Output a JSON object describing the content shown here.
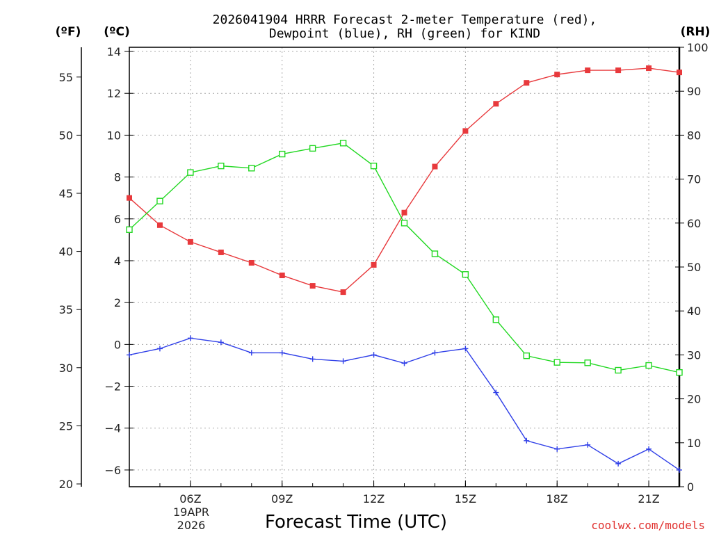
{
  "chart_data": {
    "type": "line",
    "title_line1": "2026041904 HRRR Forecast 2-meter Temperature (red),",
    "title_line2": "Dewpoint (blue), RH (green) for KIND",
    "xlabel": "Forecast Time (UTC)",
    "unit_f": "(ºF)",
    "unit_c": "(ºC)",
    "unit_rh": "(RH)",
    "date_label_day": "19APR",
    "date_label_year": "2026",
    "credit": "coolwx.com/models",
    "x_hours": [
      4,
      5,
      6,
      7,
      8,
      9,
      10,
      11,
      12,
      13,
      14,
      15,
      16,
      17,
      18,
      19,
      20,
      21,
      22
    ],
    "x_ticks": [
      {
        "hour": 6,
        "label": "06Z"
      },
      {
        "hour": 9,
        "label": "09Z"
      },
      {
        "hour": 12,
        "label": "12Z"
      },
      {
        "hour": 15,
        "label": "15Z"
      },
      {
        "hour": 18,
        "label": "18Z"
      },
      {
        "hour": 21,
        "label": "21Z"
      }
    ],
    "xlim": [
      4,
      22
    ],
    "y_celsius": {
      "lim": [
        -6.8,
        14.2
      ],
      "ticks": [
        -6,
        -4,
        -2,
        0,
        2,
        4,
        6,
        8,
        10,
        12,
        14
      ]
    },
    "y_fahrenheit": {
      "ticks": [
        20,
        25,
        30,
        35,
        40,
        45,
        50,
        55
      ]
    },
    "y_rh": {
      "lim": [
        0,
        100
      ],
      "ticks": [
        0,
        10,
        20,
        30,
        40,
        50,
        60,
        70,
        80,
        90,
        100
      ]
    },
    "series": [
      {
        "name": "Temperature",
        "axis": "C",
        "color": "#e8393c",
        "marker": "filled-square",
        "values": [
          7.0,
          5.7,
          4.9,
          4.4,
          3.9,
          3.3,
          2.8,
          2.5,
          3.8,
          6.3,
          8.5,
          10.2,
          11.5,
          12.5,
          12.9,
          13.1,
          13.1,
          13.2,
          13.0
        ]
      },
      {
        "name": "Dewpoint",
        "axis": "C",
        "color": "#2f3fe8",
        "marker": "plus",
        "values": [
          -0.5,
          -0.2,
          0.3,
          0.1,
          -0.4,
          -0.4,
          -0.7,
          -0.8,
          -0.5,
          -0.9,
          -0.4,
          -0.2,
          -2.3,
          -4.6,
          -5.0,
          -4.8,
          -5.7,
          -5.0,
          -6.0
        ]
      },
      {
        "name": "RH",
        "axis": "RH",
        "color": "#22d822",
        "marker": "open-square",
        "values": [
          58.5,
          65,
          71.5,
          73,
          72.5,
          75.7,
          77,
          78.2,
          73,
          60,
          53,
          48.3,
          38,
          29.8,
          28.3,
          28.2,
          26.5,
          27.6,
          26
        ]
      }
    ]
  }
}
